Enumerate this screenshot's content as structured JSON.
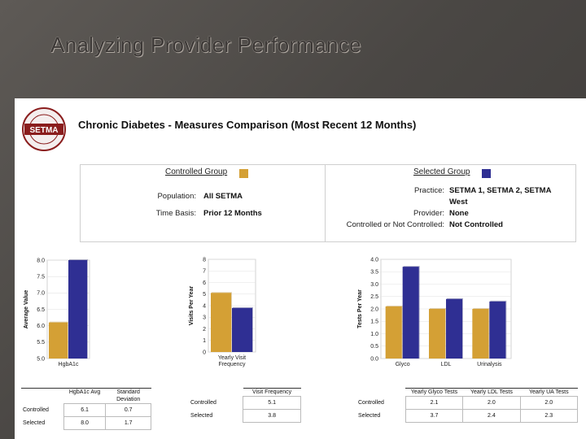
{
  "slide": {
    "title": "Analyzing Provider Performance"
  },
  "logo": {
    "text": "SETMA",
    "ring_top": "SOUTHEAST TEXAS",
    "ring_bottom": "MEDICAL ASSOCIATES"
  },
  "report": {
    "title": "Chronic Diabetes -  Measures Comparison (Most Recent 12 Months)"
  },
  "groups": {
    "controlled": {
      "label": "Controlled Group",
      "color": "#d4a035",
      "population_label": "Population:",
      "population_value": "All SETMA",
      "time_basis_label": "Time Basis:",
      "time_basis_value": "Prior 12 Months"
    },
    "selected": {
      "label": "Selected Group",
      "color": "#2f2f93",
      "practice_label": "Practice:",
      "practice_value": "SETMA 1, SETMA 2, SETMA",
      "practice_value2": "West",
      "provider_label": "Provider:",
      "provider_value": "None",
      "control_label": "Controlled or Not Controlled:",
      "control_value": "Not Controlled"
    }
  },
  "chart_data": [
    {
      "type": "bar",
      "title": "",
      "ylabel": "Average Value",
      "categories": [
        "HgbA1c"
      ],
      "ylim": [
        5.0,
        8.0
      ],
      "yticks": [
        "5.0",
        "5.5",
        "6.0",
        "6.5",
        "7.0",
        "7.5",
        "8.0"
      ],
      "series": [
        {
          "name": "Controlled",
          "values": [
            6.1
          ]
        },
        {
          "name": "Selected",
          "values": [
            8.0
          ]
        }
      ]
    },
    {
      "type": "bar",
      "title": "",
      "ylabel": "Visits Per Year",
      "categories": [
        "Yearly Visit Frequency"
      ],
      "ylim": [
        0,
        8
      ],
      "yticks": [
        "0",
        "1",
        "2",
        "3",
        "4",
        "5",
        "6",
        "7",
        "8"
      ],
      "series": [
        {
          "name": "Controlled",
          "values": [
            5.1
          ]
        },
        {
          "name": "Selected",
          "values": [
            3.8
          ]
        }
      ]
    },
    {
      "type": "bar",
      "title": "",
      "ylabel": "Tests Per Year",
      "categories": [
        "Glyco",
        "LDL",
        "Urinalysis"
      ],
      "ylim": [
        0,
        4.0
      ],
      "yticks": [
        "0.0",
        "0.5",
        "1.0",
        "1.5",
        "2.0",
        "2.5",
        "3.0",
        "3.5",
        "4.0"
      ],
      "series": [
        {
          "name": "Controlled",
          "values": [
            2.1,
            2.0,
            2.0
          ]
        },
        {
          "name": "Selected",
          "values": [
            3.7,
            2.4,
            2.3
          ]
        }
      ]
    }
  ],
  "tables": {
    "t1": {
      "headers": [
        "HgbA1c Avg",
        "Standard Deviation"
      ],
      "rows": [
        {
          "label": "Controlled",
          "values": [
            "6.1",
            "0.7"
          ]
        },
        {
          "label": "Selected",
          "values": [
            "8.0",
            "1.7"
          ]
        }
      ]
    },
    "t2": {
      "headers": [
        "Visit Frequency"
      ],
      "rows": [
        {
          "label": "Controlled",
          "values": [
            "5.1"
          ]
        },
        {
          "label": "Selected",
          "values": [
            "3.8"
          ]
        }
      ]
    },
    "t3": {
      "headers": [
        "Yearly Glyco Tests",
        "Yearly LDL Tests",
        "Yearly UA Tests"
      ],
      "rows": [
        {
          "label": "Controlled",
          "values": [
            "2.1",
            "2.0",
            "2.0"
          ]
        },
        {
          "label": "Selected",
          "values": [
            "3.7",
            "2.4",
            "2.3"
          ]
        }
      ]
    }
  }
}
